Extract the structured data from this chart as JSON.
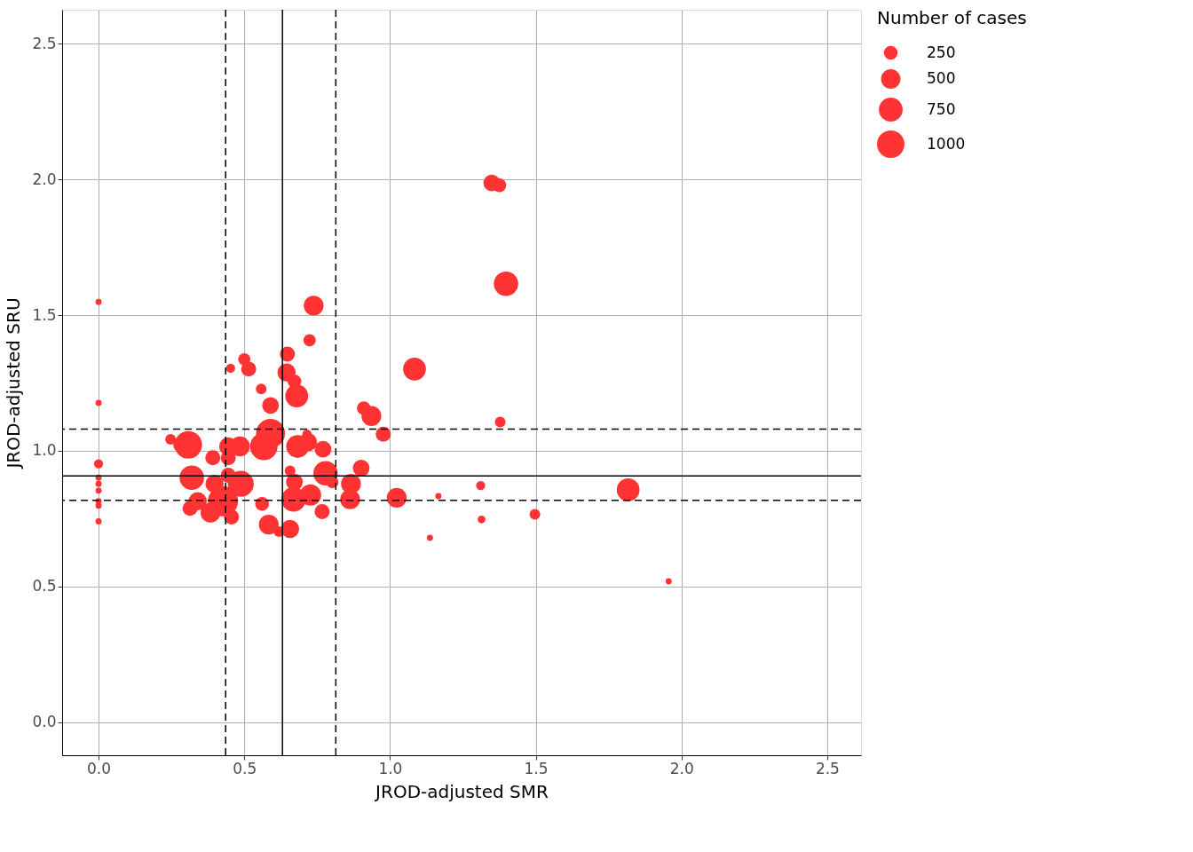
{
  "chart_data": {
    "type": "bubble",
    "xlabel": "JROD-adjusted SMR",
    "ylabel": "JROD-adjusted SRU",
    "legend_title": "Number of cases",
    "x": [
      0,
      0,
      0,
      0,
      0,
      0,
      0,
      0,
      0,
      0.247,
      0.308,
      0.282,
      0.392,
      0.445,
      0.485,
      0.445,
      0.32,
      0.398,
      0.445,
      0.488,
      0.34,
      0.314,
      0.427,
      0.384,
      0.456,
      0.5,
      0.453,
      0.515,
      0.558,
      0.59,
      0.738,
      0.724,
      0.648,
      0.645,
      0.672,
      0.68,
      0.567,
      0.59,
      0.683,
      0.718,
      0.715,
      0.77,
      0.779,
      0.802,
      0.657,
      0.672,
      0.901,
      0.866,
      0.863,
      0.727,
      0.669,
      0.561,
      0.767,
      0.584,
      0.619,
      0.657,
      0.91,
      0.936,
      0.977,
      1.084,
      1.023,
      1.137,
      1.349,
      1.375,
      1.398,
      1.378,
      1.311,
      1.166,
      1.314,
      1.497,
      1.817,
      1.956
    ],
    "values": [
      1.548,
      1.176,
      0.952,
      0.901,
      0.878,
      0.853,
      0.814,
      0.798,
      0.74,
      1.042,
      1.022,
      1.022,
      0.974,
      1.016,
      1.016,
      0.974,
      0.901,
      0.878,
      0.91,
      0.878,
      0.814,
      0.788,
      0.814,
      0.772,
      0.756,
      1.337,
      1.304,
      1.301,
      1.228,
      1.167,
      1.535,
      1.407,
      1.356,
      1.288,
      1.256,
      1.202,
      1.016,
      1.064,
      1.016,
      1.032,
      1.061,
      1.006,
      0.917,
      0.885,
      0.926,
      0.885,
      0.936,
      0.878,
      0.821,
      0.837,
      0.821,
      0.804,
      0.776,
      0.728,
      0.702,
      0.712,
      1.157,
      1.128,
      1.061,
      1.301,
      0.827,
      0.679,
      1.987,
      1.978,
      1.615,
      1.106,
      0.872,
      0.833,
      0.747,
      0.766,
      0.856,
      0.519
    ],
    "sizes": [
      50,
      50,
      111,
      50,
      50,
      50,
      50,
      50,
      50,
      150,
      1000,
      300,
      300,
      440,
      520,
      300,
      790,
      440,
      300,
      890,
      440,
      300,
      1200,
      520,
      300,
      200,
      110,
      300,
      150,
      370,
      520,
      200,
      300,
      440,
      250,
      690,
      1000,
      1110,
      690,
      440,
      110,
      370,
      790,
      200,
      150,
      370,
      370,
      520,
      520,
      600,
      790,
      250,
      300,
      520,
      150,
      440,
      250,
      520,
      300,
      690,
      520,
      50,
      370,
      250,
      790,
      150,
      110,
      50,
      80,
      150,
      690,
      50
    ],
    "color": "#ff3333",
    "size_legend": [
      250,
      500,
      750,
      1000
    ],
    "xlim": [
      -0.125,
      2.616
    ],
    "ylim": [
      -0.122,
      2.625
    ],
    "xticks": [
      {
        "value": 0,
        "label": "0.0"
      },
      {
        "value": 0.5,
        "label": "0.5"
      },
      {
        "value": 1,
        "label": "1.0"
      },
      {
        "value": 1.5,
        "label": "1.5"
      },
      {
        "value": 2,
        "label": "2.0"
      },
      {
        "value": 2.5,
        "label": "2.5"
      }
    ],
    "yticks": [
      {
        "value": 0,
        "label": "0.0"
      },
      {
        "value": 0.5,
        "label": "0.5"
      },
      {
        "value": 1,
        "label": "1.0"
      },
      {
        "value": 1.5,
        "label": "1.5"
      },
      {
        "value": 2,
        "label": "2.0"
      },
      {
        "value": 2.5,
        "label": "2.5"
      }
    ],
    "ref_lines": [
      {
        "axis": "x",
        "value": 0.631,
        "line_style": "solid",
        "color": "#000000"
      },
      {
        "axis": "x",
        "value": 0.436,
        "line_style": "dashed",
        "color": "#000000"
      },
      {
        "axis": "x",
        "value": 0.814,
        "line_style": "dashed",
        "color": "#000000"
      },
      {
        "axis": "y",
        "value": 0.907,
        "line_style": "solid",
        "color": "#000000"
      },
      {
        "axis": "y",
        "value": 1.08,
        "line_style": "dashed",
        "color": "#000000"
      },
      {
        "axis": "y",
        "value": 0.817,
        "line_style": "dashed",
        "color": "#000000"
      }
    ],
    "grid": true
  }
}
